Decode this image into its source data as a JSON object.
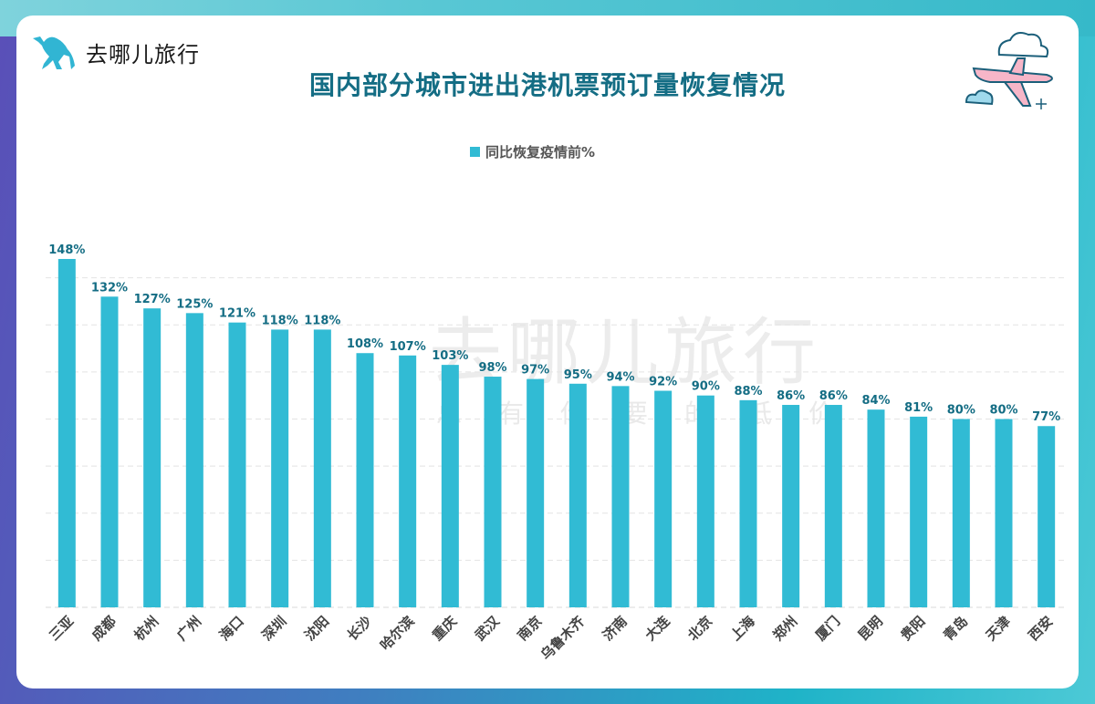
{
  "brand": {
    "name": "去哪儿旅行",
    "watermark": "去哪儿旅行",
    "watermark_slogan": "总有你要的低价"
  },
  "chart_data": {
    "type": "bar",
    "title": "国内部分城市进出港机票预订量恢复情况",
    "legend": {
      "position": "top",
      "entries": [
        "同比恢复疫情前%"
      ]
    },
    "series": [
      {
        "name": "同比恢复疫情前%",
        "values": [
          148,
          132,
          127,
          125,
          121,
          118,
          118,
          108,
          107,
          103,
          98,
          97,
          95,
          94,
          92,
          90,
          88,
          86,
          86,
          84,
          81,
          80,
          80,
          77
        ]
      }
    ],
    "categories": [
      "三亚",
      "成都",
      "杭州",
      "广州",
      "海口",
      "深圳",
      "沈阳",
      "长沙",
      "哈尔滨",
      "重庆",
      "武汉",
      "南京",
      "乌鲁木齐",
      "济南",
      "大连",
      "北京",
      "上海",
      "郑州",
      "厦门",
      "昆明",
      "贵阳",
      "青岛",
      "天津",
      "西安"
    ],
    "data_label_suffix": "%",
    "ylim": [
      0,
      160
    ],
    "grid": true,
    "bar_color": "#31bbd4",
    "label_color": "#146d84"
  }
}
